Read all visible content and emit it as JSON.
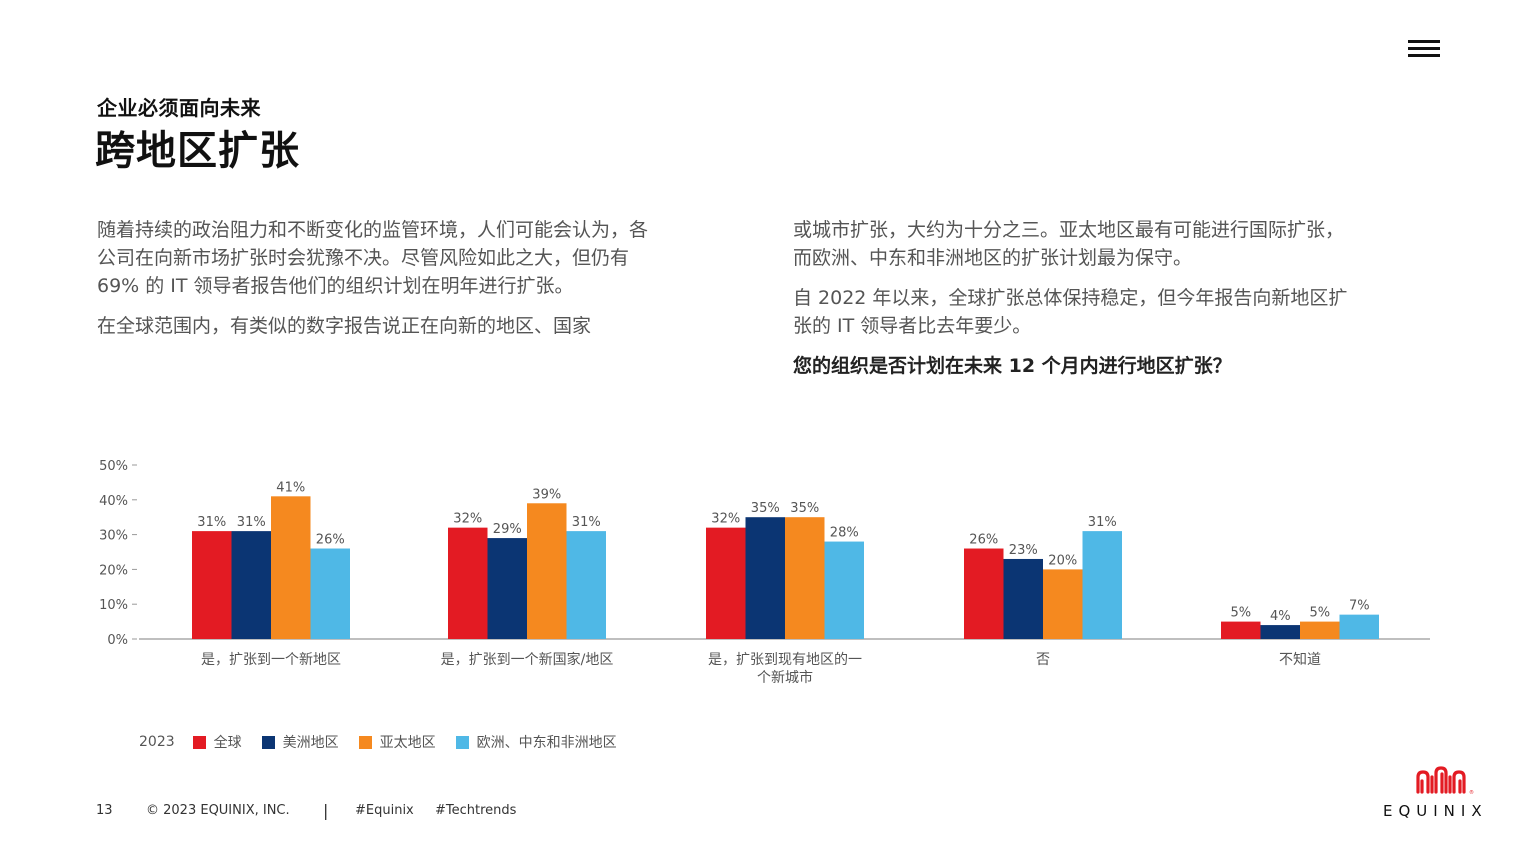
{
  "header": {
    "kicker": "企业必须面向未来",
    "title": "跨地区扩张"
  },
  "body": {
    "left_paragraphs": [
      "随着持续的政治阻力和不断变化的监管环境，人们可能会认为，各公司在向新市场扩张时会犹豫不决。尽管风险如此之大，但仍有 69% 的 IT 领导者报告他们的组织计划在明年进行扩张。",
      "在全球范围内，有类似的数字报告说正在向新的地区、国家"
    ],
    "right_paragraphs": [
      "或城市扩张，大约为十分之三。亚太地区最有可能进行国际扩张，而欧洲、中东和非洲地区的扩张计划最为保守。",
      "自 2022 年以来，全球扩张总体保持稳定，但今年报告向新地区扩张的 IT 领导者比去年要少。"
    ],
    "question": "您的组织是否计划在未来 12 个月内进行地区扩张？"
  },
  "chart_data": {
    "type": "bar",
    "categories": [
      [
        "是，扩张到一个新地区"
      ],
      [
        "是，扩张到一个新国家/地区"
      ],
      [
        "是，扩张到现有地区的一",
        "个新城市"
      ],
      [
        "否"
      ],
      [
        "不知道"
      ]
    ],
    "series": [
      {
        "name": "全球",
        "color": "#e31b23",
        "values": [
          31,
          32,
          32,
          26,
          5
        ]
      },
      {
        "name": "美洲地区",
        "color": "#0b3573",
        "values": [
          31,
          29,
          35,
          23,
          4
        ]
      },
      {
        "name": "亚太地区",
        "color": "#f5891f",
        "values": [
          41,
          39,
          35,
          20,
          5
        ]
      },
      {
        "name": "欧洲、中东和非洲地区",
        "color": "#4fb8e6",
        "values": [
          26,
          31,
          28,
          31,
          7
        ]
      }
    ],
    "yticks": [
      "0%",
      "10%",
      "20%",
      "30%",
      "40%",
      "50%"
    ],
    "ylim": [
      0,
      50
    ],
    "unit": "%",
    "legend_year": "2023",
    "legend_position": "bottom-left",
    "grid": false
  },
  "footer": {
    "page": "13",
    "copyright": "© 2023 EQUINIX, INC.",
    "separator": "|",
    "tag1": "#Equinix",
    "tag2": "#Techtrends"
  },
  "brand": {
    "name": "EQUINIX",
    "color": "#e31b23"
  },
  "icons": {
    "menu": "hamburger-menu-icon",
    "logo": "equinix-logo-icon"
  }
}
